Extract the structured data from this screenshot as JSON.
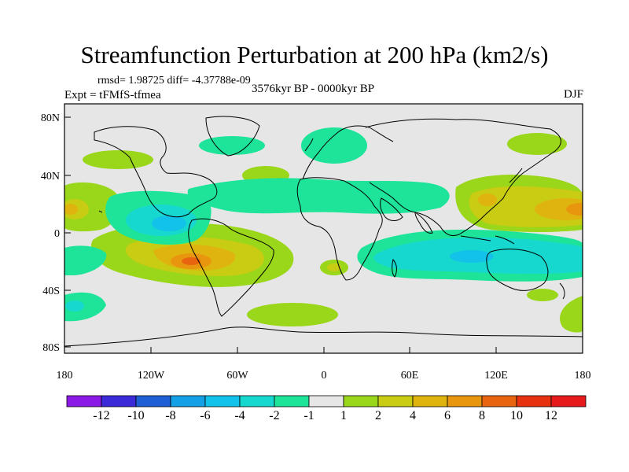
{
  "header": {
    "title": "Streamfunction Perturbation at 200 hPa (km2/s)",
    "stats": "rmsd= 1.98725 diff= -4.37788e-09",
    "experiment": "Expt = tFMfS-tfmea",
    "period": "3576kyr BP - 0000kyr BP",
    "season": "DJF"
  },
  "axes": {
    "lat_labels": [
      "80N",
      "40N",
      "0",
      "40S",
      "80S"
    ],
    "lon_labels": [
      "180",
      "120W",
      "60W",
      "0",
      "60E",
      "120E",
      "180"
    ]
  },
  "colorbar": {
    "labels": [
      "-12",
      "-10",
      "-8",
      "-6",
      "-4",
      "-2",
      "-1",
      "1",
      "2",
      "4",
      "6",
      "8",
      "10",
      "12"
    ],
    "colors": [
      "#8b1ae6",
      "#3a2ad8",
      "#1f5fd6",
      "#14a0e4",
      "#12c2e8",
      "#16d8cf",
      "#1ee49a",
      "#e6e6e6",
      "#9ad61a",
      "#c8cc12",
      "#e0b40e",
      "#e8960e",
      "#e8640e",
      "#e6320e",
      "#e61a1a"
    ]
  }
}
